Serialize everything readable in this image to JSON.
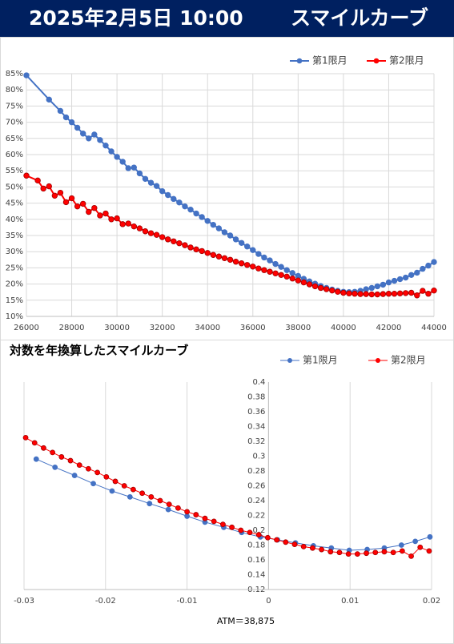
{
  "header": {
    "title": "2025年2月5日 10:00",
    "subtitle": "スマイルカーブ"
  },
  "chart_data": [
    {
      "type": "line",
      "legend": "top-right",
      "xgrid": true,
      "ygrid": true,
      "xlim": [
        26000,
        44000
      ],
      "xticks": [
        26000,
        28000,
        30000,
        32000,
        34000,
        36000,
        38000,
        40000,
        42000,
        44000
      ],
      "ylim": [
        10,
        85
      ],
      "yticks": [
        {
          "value": 10,
          "label": "10%"
        },
        {
          "value": 15,
          "label": "15%"
        },
        {
          "value": 20,
          "label": "20%"
        },
        {
          "value": 25,
          "label": "25%"
        },
        {
          "value": 30,
          "label": "30%"
        },
        {
          "value": 35,
          "label": "35%"
        },
        {
          "value": 40,
          "label": "40%"
        },
        {
          "value": 45,
          "label": "45%"
        },
        {
          "value": 50,
          "label": "50%"
        },
        {
          "value": 55,
          "label": "55%"
        },
        {
          "value": 60,
          "label": "60%"
        },
        {
          "value": 65,
          "label": "65%"
        },
        {
          "value": 70,
          "label": "70%"
        },
        {
          "value": 75,
          "label": "75%"
        },
        {
          "value": 80,
          "label": "80%"
        },
        {
          "value": 85,
          "label": "85%"
        }
      ],
      "series": [
        {
          "name": "第1限月",
          "color": "#4472c4",
          "x": [
            26000,
            27000,
            27500,
            27750,
            28000,
            28250,
            28500,
            28750,
            29000,
            29250,
            29500,
            29750,
            30000,
            30250,
            30500,
            30750,
            31000,
            31250,
            31500,
            31750,
            32000,
            32250,
            32500,
            32750,
            33000,
            33250,
            33500,
            33750,
            34000,
            34250,
            34500,
            34750,
            35000,
            35250,
            35500,
            35750,
            36000,
            36250,
            36500,
            36750,
            37000,
            37250,
            37500,
            37750,
            38000,
            38250,
            38500,
            38750,
            39000,
            39250,
            39500,
            39750,
            40000,
            40250,
            40500,
            40750,
            41000,
            41250,
            41500,
            41750,
            42000,
            42250,
            42500,
            42750,
            43000,
            43250,
            43500,
            43750,
            44000
          ],
          "values": [
            84.5,
            77,
            73.5,
            71.5,
            70,
            68.3,
            66.5,
            65,
            66.2,
            64.5,
            62.8,
            61,
            59.3,
            57.8,
            55.8,
            56,
            54.2,
            52.5,
            51.3,
            50.3,
            48.7,
            47.5,
            46.3,
            45.2,
            44,
            43,
            41.8,
            40.7,
            39.5,
            38.3,
            37.2,
            36,
            35,
            33.8,
            32.7,
            31.6,
            30.5,
            29.3,
            28.2,
            27.3,
            26.2,
            25.3,
            24.3,
            23.4,
            22.5,
            21.6,
            20.8,
            20.1,
            19.4,
            18.8,
            18.3,
            17.9,
            17.6,
            17.5,
            17.6,
            17.9,
            18.4,
            18.8,
            19.3,
            19.8,
            20.5,
            21,
            21.5,
            22,
            22.8,
            23.5,
            24.7,
            25.7,
            26.8
          ]
        },
        {
          "name": "第2限月",
          "color": "#ff0000",
          "x": [
            26000,
            26500,
            26750,
            27000,
            27250,
            27500,
            27750,
            28000,
            28250,
            28500,
            28750,
            29000,
            29250,
            29500,
            29750,
            30000,
            30250,
            30500,
            30750,
            31000,
            31250,
            31500,
            31750,
            32000,
            32250,
            32500,
            32750,
            33000,
            33250,
            33500,
            33750,
            34000,
            34250,
            34500,
            34750,
            35000,
            35250,
            35500,
            35750,
            36000,
            36250,
            36500,
            36750,
            37000,
            37250,
            37500,
            37750,
            38000,
            38250,
            38500,
            38750,
            39000,
            39250,
            39500,
            39750,
            40000,
            40250,
            40500,
            40750,
            41000,
            41250,
            41500,
            41750,
            42000,
            42250,
            42500,
            42750,
            43000,
            43250,
            43500,
            43750,
            44000
          ],
          "values": [
            53.5,
            52,
            49.5,
            50.2,
            47.3,
            48.2,
            45.3,
            46.5,
            44,
            44.8,
            42.3,
            43.5,
            41.2,
            41.8,
            40,
            40.3,
            38.5,
            38.7,
            37.8,
            37.2,
            36.3,
            35.7,
            35.2,
            34.5,
            33.8,
            33.2,
            32.6,
            32,
            31.3,
            30.7,
            30.2,
            29.6,
            29,
            28.5,
            28,
            27.5,
            26.9,
            26.4,
            25.9,
            25.4,
            24.8,
            24.3,
            23.8,
            23.3,
            22.8,
            22.3,
            21.7,
            21.1,
            20.5,
            19.9,
            19.3,
            18.8,
            18.4,
            18,
            17.6,
            17.3,
            17.1,
            17,
            16.9,
            16.9,
            16.8,
            16.8,
            16.9,
            17,
            17,
            17.1,
            17.2,
            17.3,
            16.5,
            17.9,
            17,
            18
          ]
        }
      ]
    },
    {
      "type": "line",
      "title": "対数を年換算したスマイルカーブ",
      "xlabel": "ATM＝38,875",
      "legend": "top-right",
      "xgrid": true,
      "ygrid": false,
      "y_axis_crosses": 0,
      "xlim": [
        -0.03,
        0.02
      ],
      "xticks": [
        -0.03,
        -0.02,
        -0.01,
        0,
        0.01,
        0.02
      ],
      "ylim": [
        0.12,
        0.4
      ],
      "yticks": [
        0.12,
        0.14,
        0.16,
        0.18,
        0.2,
        0.22,
        0.24,
        0.26,
        0.28,
        0.3,
        0.32,
        0.34,
        0.36,
        0.38,
        0.4
      ],
      "series": [
        {
          "name": "第1限月",
          "color": "#4472c4",
          "x": [
            -0.0285,
            -0.0262,
            -0.0238,
            -0.0215,
            -0.0192,
            -0.017,
            -0.0146,
            -0.0123,
            -0.01,
            -0.0078,
            -0.0055,
            -0.0033,
            -0.001,
            0.0011,
            0.0033,
            0.0055,
            0.0077,
            0.0099,
            0.0121,
            0.0142,
            0.0163,
            0.018,
            0.0198
          ],
          "values": [
            0.296,
            0.285,
            0.274,
            0.263,
            0.253,
            0.245,
            0.236,
            0.228,
            0.219,
            0.211,
            0.204,
            0.197,
            0.191,
            0.187,
            0.183,
            0.179,
            0.176,
            0.173,
            0.174,
            0.176,
            0.18,
            0.185,
            0.191
          ]
        },
        {
          "name": "第2限月",
          "color": "#ff0000",
          "x": [
            -0.0298,
            -0.0287,
            -0.0276,
            -0.0265,
            -0.0254,
            -0.0243,
            -0.0232,
            -0.0221,
            -0.021,
            -0.0199,
            -0.0188,
            -0.0177,
            -0.0166,
            -0.0155,
            -0.0144,
            -0.0133,
            -0.0122,
            -0.0111,
            -0.01,
            -0.0089,
            -0.0078,
            -0.0067,
            -0.0056,
            -0.0045,
            -0.0034,
            -0.0023,
            -0.0012,
            -0.0001,
            0.001,
            0.0021,
            0.0032,
            0.0043,
            0.0054,
            0.0065,
            0.0076,
            0.0087,
            0.0098,
            0.0109,
            0.012,
            0.0131,
            0.0142,
            0.0153,
            0.0164,
            0.0175,
            0.0186,
            0.0197
          ],
          "values": [
            0.325,
            0.318,
            0.311,
            0.305,
            0.299,
            0.294,
            0.288,
            0.283,
            0.278,
            0.272,
            0.266,
            0.26,
            0.255,
            0.25,
            0.245,
            0.24,
            0.235,
            0.23,
            0.225,
            0.221,
            0.216,
            0.212,
            0.208,
            0.204,
            0.2,
            0.197,
            0.194,
            0.19,
            0.187,
            0.184,
            0.181,
            0.178,
            0.176,
            0.174,
            0.171,
            0.17,
            0.168,
            0.168,
            0.169,
            0.17,
            0.171,
            0.17,
            0.172,
            0.165,
            0.177,
            0.172
          ]
        }
      ]
    }
  ]
}
